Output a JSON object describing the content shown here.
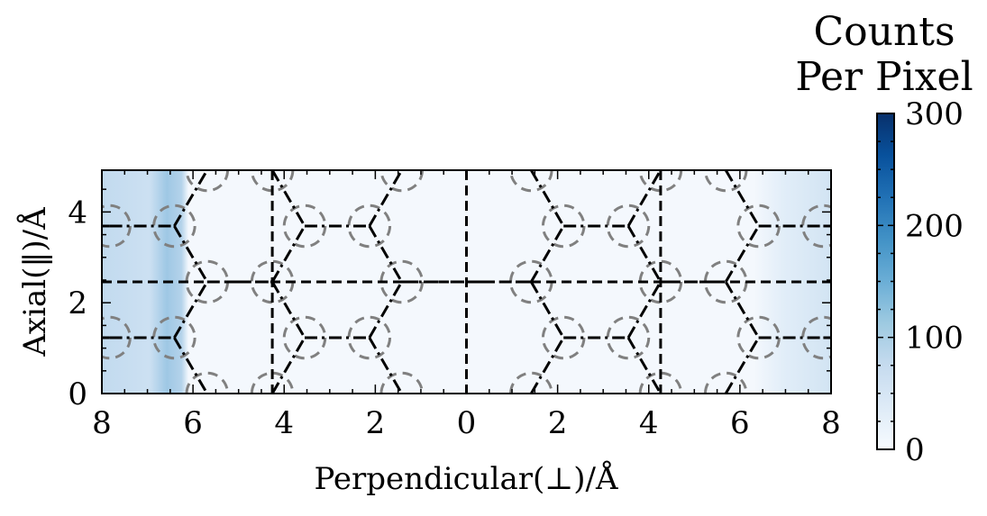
{
  "chart_data": {
    "type": "heatmap",
    "title": "",
    "xlabel": "Perpendicular(⊥)/Å",
    "ylabel": "Axial(‖)/Å",
    "xlim": [
      -8,
      8
    ],
    "ylim": [
      0,
      4.92
    ],
    "x_tick_labels": [
      "8",
      "6",
      "4",
      "2",
      "0",
      "2",
      "4",
      "6",
      "8"
    ],
    "x_tick_values": [
      -8,
      -6,
      -4,
      -2,
      0,
      2,
      4,
      6,
      8
    ],
    "y_tick_labels": [
      "0",
      "2",
      "4"
    ],
    "y_tick_values": [
      0,
      2,
      4
    ],
    "grid": false,
    "colormap": "Blues",
    "colorbar": {
      "title_line1": "Counts",
      "title_line2": "Per Pixel",
      "range": [
        0,
        300
      ],
      "tick_labels": [
        "0",
        "100",
        "200",
        "300"
      ],
      "tick_values": [
        0,
        100,
        200,
        300
      ]
    },
    "intensity_bands": [
      {
        "x_range": [
          -8,
          -6.1
        ],
        "level": 0.35
      },
      {
        "x_range": [
          -6.6,
          -6.1
        ],
        "level": 0.55
      },
      {
        "x_range": [
          6.3,
          8
        ],
        "level": 0.12
      }
    ],
    "overlay": {
      "vertical_dashed_x": [
        -4.26,
        0,
        4.26
      ],
      "horizontal_dashed_y": [
        2.46
      ],
      "circle_radius": 0.45,
      "atom_sites": [
        [
          -7.83,
          1.23
        ],
        [
          -6.41,
          1.23
        ],
        [
          -7.83,
          3.69
        ],
        [
          -6.41,
          3.69
        ],
        [
          -5.69,
          2.46
        ],
        [
          -4.26,
          2.46
        ],
        [
          -3.55,
          1.23
        ],
        [
          -2.13,
          1.23
        ],
        [
          -3.55,
          3.69
        ],
        [
          -2.13,
          3.69
        ],
        [
          -1.42,
          2.46
        ],
        [
          1.42,
          2.46
        ],
        [
          2.13,
          1.23
        ],
        [
          3.55,
          1.23
        ],
        [
          2.13,
          3.69
        ],
        [
          3.55,
          3.69
        ],
        [
          4.26,
          2.46
        ],
        [
          5.69,
          2.46
        ],
        [
          6.41,
          1.23
        ],
        [
          7.83,
          1.23
        ],
        [
          6.41,
          3.69
        ],
        [
          7.83,
          3.69
        ],
        [
          -4.26,
          0
        ],
        [
          -5.69,
          0
        ],
        [
          -1.42,
          0
        ],
        [
          1.42,
          0
        ],
        [
          4.26,
          0
        ],
        [
          5.69,
          0
        ],
        [
          -4.26,
          4.92
        ],
        [
          -5.69,
          4.92
        ],
        [
          -1.42,
          4.92
        ],
        [
          1.42,
          4.92
        ],
        [
          4.26,
          4.92
        ],
        [
          5.69,
          4.92
        ]
      ],
      "bonds": [
        [
          [
            -8,
            1.23
          ],
          [
            -7.83,
            1.23
          ]
        ],
        [
          [
            -7.83,
            1.23
          ],
          [
            -6.41,
            1.23
          ]
        ],
        [
          [
            -8,
            3.69
          ],
          [
            -7.83,
            3.69
          ]
        ],
        [
          [
            -7.83,
            3.69
          ],
          [
            -6.41,
            3.69
          ]
        ],
        [
          [
            -6.41,
            1.23
          ],
          [
            -5.69,
            0
          ]
        ],
        [
          [
            -6.41,
            1.23
          ],
          [
            -5.69,
            2.46
          ]
        ],
        [
          [
            -6.41,
            3.69
          ],
          [
            -5.69,
            2.46
          ]
        ],
        [
          [
            -6.41,
            3.69
          ],
          [
            -5.69,
            4.92
          ]
        ],
        [
          [
            -5.69,
            2.46
          ],
          [
            -4.26,
            2.46
          ]
        ],
        [
          [
            -4.26,
            2.46
          ],
          [
            -3.55,
            1.23
          ]
        ],
        [
          [
            -4.26,
            2.46
          ],
          [
            -3.55,
            3.69
          ]
        ],
        [
          [
            -4.26,
            0
          ],
          [
            -3.55,
            1.23
          ]
        ],
        [
          [
            -4.26,
            4.92
          ],
          [
            -3.55,
            3.69
          ]
        ],
        [
          [
            -3.55,
            1.23
          ],
          [
            -2.13,
            1.23
          ]
        ],
        [
          [
            -3.55,
            3.69
          ],
          [
            -2.13,
            3.69
          ]
        ],
        [
          [
            -2.13,
            1.23
          ],
          [
            -1.42,
            0
          ]
        ],
        [
          [
            -2.13,
            1.23
          ],
          [
            -1.42,
            2.46
          ]
        ],
        [
          [
            -2.13,
            3.69
          ],
          [
            -1.42,
            2.46
          ]
        ],
        [
          [
            -2.13,
            3.69
          ],
          [
            -1.42,
            4.92
          ]
        ],
        [
          [
            -1.42,
            2.46
          ],
          [
            1.42,
            2.46
          ]
        ],
        [
          [
            1.42,
            2.46
          ],
          [
            2.13,
            1.23
          ]
        ],
        [
          [
            1.42,
            2.46
          ],
          [
            2.13,
            3.69
          ]
        ],
        [
          [
            1.42,
            0
          ],
          [
            2.13,
            1.23
          ]
        ],
        [
          [
            1.42,
            4.92
          ],
          [
            2.13,
            3.69
          ]
        ],
        [
          [
            2.13,
            1.23
          ],
          [
            3.55,
            1.23
          ]
        ],
        [
          [
            2.13,
            3.69
          ],
          [
            3.55,
            3.69
          ]
        ],
        [
          [
            3.55,
            1.23
          ],
          [
            4.26,
            0
          ]
        ],
        [
          [
            3.55,
            1.23
          ],
          [
            4.26,
            2.46
          ]
        ],
        [
          [
            3.55,
            3.69
          ],
          [
            4.26,
            2.46
          ]
        ],
        [
          [
            3.55,
            3.69
          ],
          [
            4.26,
            4.92
          ]
        ],
        [
          [
            4.26,
            2.46
          ],
          [
            5.69,
            2.46
          ]
        ],
        [
          [
            5.69,
            2.46
          ],
          [
            6.41,
            1.23
          ]
        ],
        [
          [
            5.69,
            2.46
          ],
          [
            6.41,
            3.69
          ]
        ],
        [
          [
            5.69,
            0
          ],
          [
            6.41,
            1.23
          ]
        ],
        [
          [
            5.69,
            4.92
          ],
          [
            6.41,
            3.69
          ]
        ],
        [
          [
            6.41,
            1.23
          ],
          [
            7.83,
            1.23
          ]
        ],
        [
          [
            6.41,
            3.69
          ],
          [
            7.83,
            3.69
          ]
        ],
        [
          [
            7.83,
            1.23
          ],
          [
            8,
            1.23
          ]
        ],
        [
          [
            7.83,
            3.69
          ],
          [
            8,
            3.69
          ]
        ]
      ]
    }
  }
}
